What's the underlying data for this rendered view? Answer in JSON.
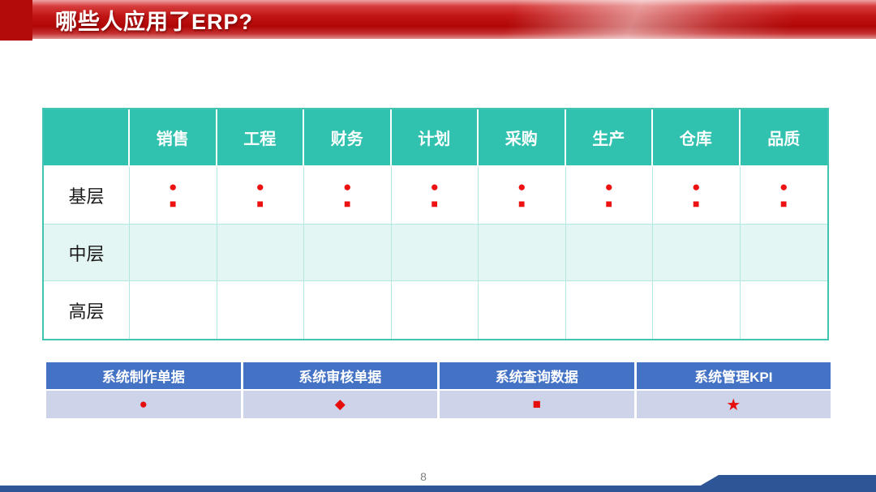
{
  "slide": {
    "title": "哪些人应用了ERP?",
    "page_number": "8"
  },
  "matrix_table": {
    "corner_label": "",
    "columns": [
      "销售",
      "工程",
      "财务",
      "计划",
      "采购",
      "生产",
      "仓库",
      "品质"
    ],
    "rows": [
      {
        "label": "基层",
        "cells": [
          [
            "●",
            "■"
          ],
          [
            "●",
            "■"
          ],
          [
            "●",
            "■"
          ],
          [
            "●",
            "■"
          ],
          [
            "●",
            "■"
          ],
          [
            "●",
            "■"
          ],
          [
            "●",
            "■"
          ],
          [
            "●",
            "■"
          ]
        ]
      },
      {
        "label": "中层",
        "cells": [
          [],
          [],
          [],
          [],
          [],
          [],
          [],
          []
        ]
      },
      {
        "label": "高层",
        "cells": [
          [],
          [],
          [],
          [],
          [],
          [],
          [],
          []
        ]
      }
    ]
  },
  "legend": {
    "items": [
      {
        "label": "系统制作单据",
        "symbol": "●"
      },
      {
        "label": "系统审核单据",
        "symbol": "◆"
      },
      {
        "label": "系统查询数据",
        "symbol": "■"
      },
      {
        "label": "系统管理KPI",
        "symbol": "★"
      }
    ]
  },
  "colors": {
    "title_red_dark": "#b30a0a",
    "table_header_teal": "#31c1af",
    "row_alt_mint": "#e4f6f3",
    "symbol_red": "#ee1111",
    "legend_header_blue": "#4472c4",
    "legend_row_lavender": "#cdd3e9",
    "footer_blue": "#2e5596"
  }
}
